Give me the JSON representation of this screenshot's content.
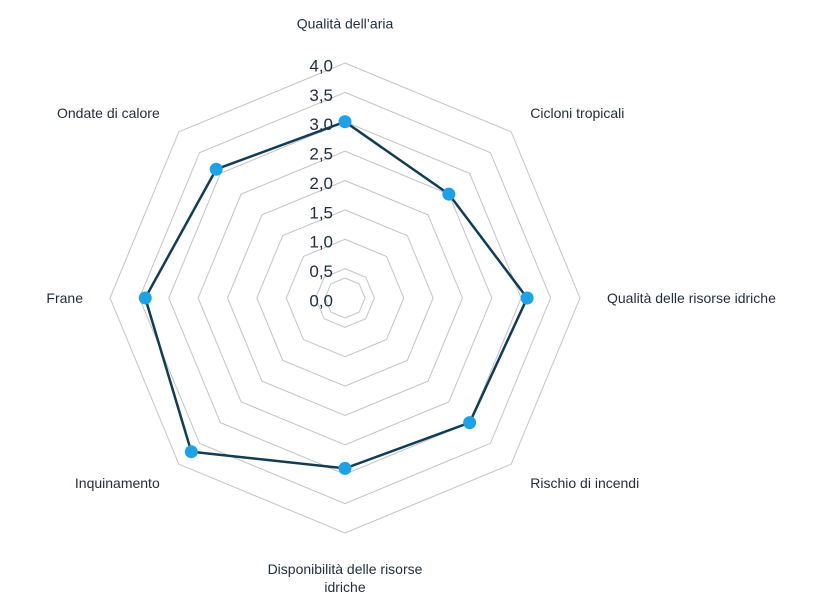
{
  "chart_data": {
    "type": "radar",
    "categories": [
      "Qualità dell’aria",
      "Cicloni tropicali",
      "Qualità delle risorse idriche",
      "Rischio di incendi",
      "Disponibilità delle risorse idriche",
      "Inquinamento",
      "Frane",
      "Ondate di calore"
    ],
    "series": [
      {
        "color": "#0f3d57",
        "marker_color": "#1aa3e8",
        "values": [
          3.0,
          2.5,
          3.1,
          3.0,
          2.9,
          3.7,
          3.4,
          3.1
        ]
      }
    ],
    "rlim": [
      0,
      4
    ],
    "rticks": [
      {
        "value": 0,
        "label": "0,0"
      },
      {
        "value": 0.5,
        "label": "0,5"
      },
      {
        "value": 1,
        "label": "1,0"
      },
      {
        "value": 1.5,
        "label": "1,5"
      },
      {
        "value": 2,
        "label": "2,0"
      },
      {
        "value": 2.5,
        "label": "2,5"
      },
      {
        "value": 3,
        "label": "3,0"
      },
      {
        "value": 3.5,
        "label": "3,5"
      },
      {
        "value": 4,
        "label": "4,0"
      }
    ],
    "grid": true
  }
}
